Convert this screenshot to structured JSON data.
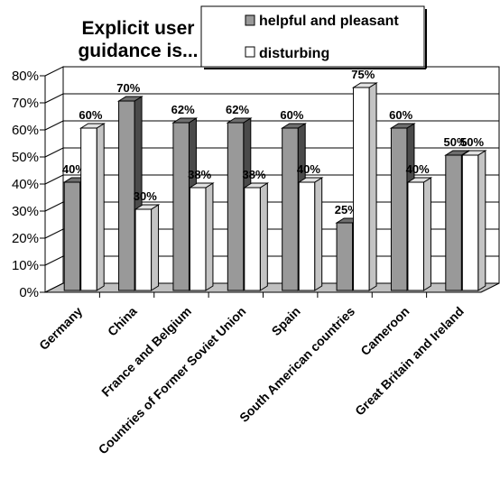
{
  "chart_data": {
    "type": "bar",
    "title_lines": [
      "Explicit user",
      "guidance is..."
    ],
    "categories": [
      "Germany",
      "China",
      "France and Belgium",
      "Countries of Former Soviet Union",
      "Spain",
      "South American countries",
      "Cameroon",
      "Great Britain and Ireland"
    ],
    "series": [
      {
        "name": "helpful and pleasant",
        "values": [
          40,
          70,
          62,
          62,
          60,
          25,
          60,
          50
        ],
        "labels": [
          "40%",
          "70%",
          "62%",
          "62%",
          "60%",
          "25%",
          "60%",
          "50%"
        ],
        "color": "#999999",
        "side_color": "#4a4a4a",
        "top_color": "#6e6e6e"
      },
      {
        "name": "disturbing",
        "values": [
          60,
          30,
          38,
          38,
          40,
          75,
          40,
          50
        ],
        "labels": [
          "60%",
          "30%",
          "38%",
          "38%",
          "40%",
          "75%",
          "40%",
          "50%"
        ],
        "color": "#ffffff",
        "side_color": "#c4c4c4",
        "top_color": "#e2e2e2"
      }
    ],
    "ylim": [
      0,
      80
    ],
    "yticks": [
      0,
      10,
      20,
      30,
      40,
      50,
      60,
      70,
      80
    ],
    "ytick_labels": [
      "0%",
      "10%",
      "20%",
      "30%",
      "40%",
      "50%",
      "60%",
      "70%",
      "80%"
    ],
    "grid": true,
    "legend_position": "top-right",
    "three_d": true,
    "colors": {
      "wall": "#ffffff",
      "floor": "#c0c0c0",
      "edge": "#000000",
      "grid": "#000000"
    }
  }
}
